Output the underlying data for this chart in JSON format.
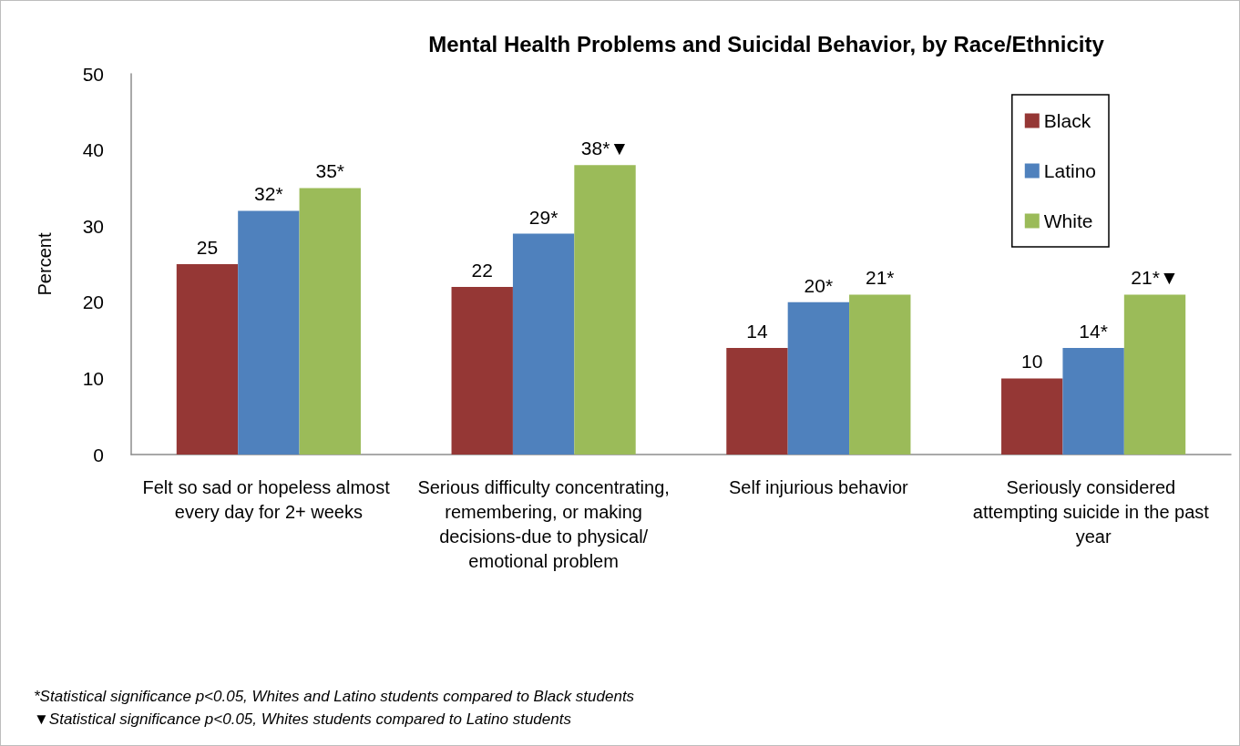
{
  "chart_data": {
    "type": "bar",
    "title": "Mental Health Problems and Suicidal Behavior, by Race/Ethnicity",
    "ylabel": "Percent",
    "categories": [
      "Felt so sad or hopeless almost every day for 2+ weeks",
      "Serious difficulty concentrating, remembering, or making decisions-due to physical/emotional problem",
      "Self injurious behavior",
      "Seriously considered attempting suicide in the past year"
    ],
    "series": [
      {
        "name": "Black",
        "color": "#953735",
        "values": [
          25,
          22,
          14,
          10
        ],
        "value_labels": [
          "25",
          "22",
          "14",
          "10"
        ]
      },
      {
        "name": "Latino",
        "color": "#4f81bd",
        "values": [
          32,
          29,
          20,
          14
        ],
        "value_labels": [
          "32*",
          "29*",
          "20*",
          "14*"
        ]
      },
      {
        "name": "White",
        "color": "#9bbb59",
        "values": [
          35,
          38,
          21,
          21
        ],
        "value_labels": [
          "35*",
          "38*▼",
          "21*",
          "21*▼"
        ]
      }
    ],
    "ylim": [
      0,
      50
    ],
    "yticks": [
      0,
      10,
      20,
      30,
      40,
      50
    ],
    "grid": false,
    "legend": "top right",
    "annotations": [
      "*Statistical significance p<0.05, Whites and Latino students compared to Black students",
      "▼Statistical significance p<0.05, Whites students compared to Latino students"
    ]
  }
}
